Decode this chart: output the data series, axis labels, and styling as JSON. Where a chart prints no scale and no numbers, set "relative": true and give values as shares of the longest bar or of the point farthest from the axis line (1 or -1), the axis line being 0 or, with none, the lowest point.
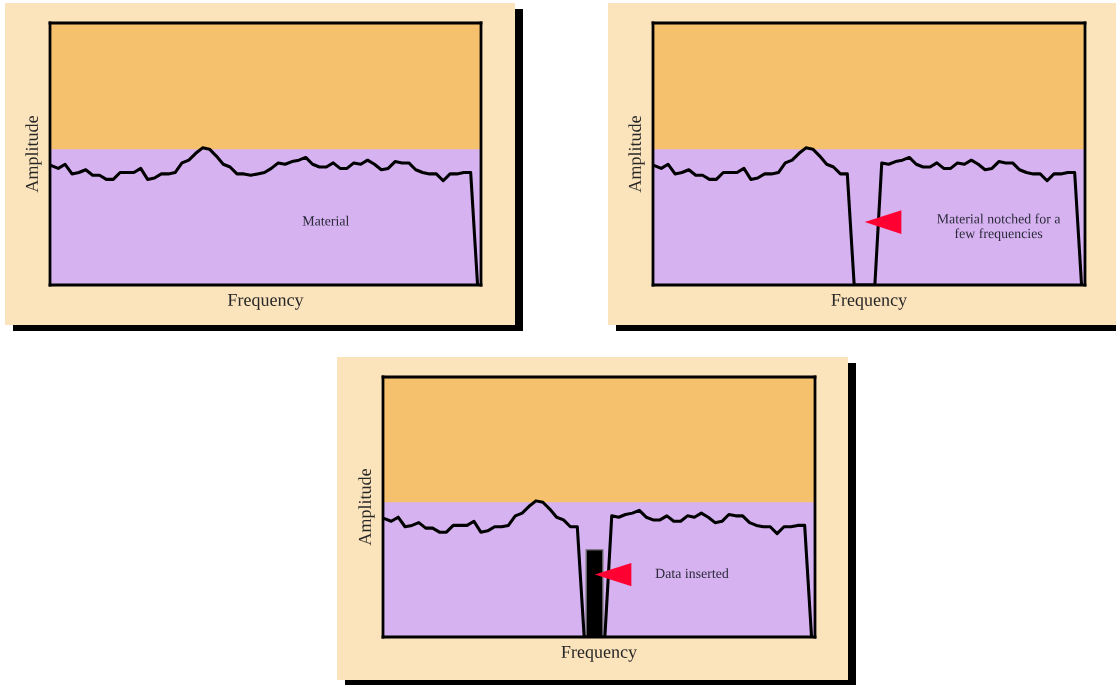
{
  "chart_data": [
    {
      "type": "line",
      "relative": true,
      "xlabel": "Frequency",
      "ylabel": "Amplitude",
      "tick_labels": false,
      "annotations": [
        "Material"
      ],
      "categories": [
        null,
        null,
        null,
        null,
        null,
        null,
        null,
        null,
        null,
        null,
        null,
        null,
        null,
        null,
        null,
        null,
        null,
        null,
        null,
        null,
        null,
        null,
        null,
        null,
        null,
        null,
        null,
        null,
        null,
        null,
        null,
        null,
        null,
        null,
        null,
        null,
        null,
        null,
        null,
        null,
        null,
        null,
        null,
        null,
        null,
        null,
        null,
        null,
        null,
        null,
        null,
        null,
        null,
        null,
        null,
        null,
        null,
        null,
        null,
        null,
        null,
        null,
        null
      ],
      "series": [
        {
          "color": "#000000",
          "values": [
            0.87,
            0.85,
            0.88,
            0.81,
            0.82,
            0.84,
            0.8,
            0.8,
            0.77,
            0.77,
            0.82,
            0.82,
            0.82,
            0.85,
            0.77,
            0.78,
            0.81,
            0.81,
            0.82,
            0.89,
            0.91,
            0.96,
            1.0,
            0.99,
            0.94,
            0.88,
            0.86,
            0.81,
            0.81,
            0.8,
            0.81,
            0.82,
            0.85,
            0.89,
            0.88,
            0.9,
            0.91,
            0.93,
            0.88,
            0.86,
            0.86,
            0.89,
            0.85,
            0.85,
            0.89,
            0.88,
            0.91,
            0.88,
            0.84,
            0.85,
            0.9,
            0.89,
            0.89,
            0.84,
            0.82,
            0.81,
            0.81,
            0.76,
            0.81,
            0.81,
            0.82,
            0.82,
            0
          ]
        }
      ]
    },
    {
      "type": "line",
      "relative": true,
      "xlabel": "Frequency",
      "ylabel": "Amplitude",
      "tick_labels": false,
      "annotations": [
        "Material notched for a\nfew frequencies"
      ],
      "categories": [
        null,
        null,
        null,
        null,
        null,
        null,
        null,
        null,
        null,
        null,
        null,
        null,
        null,
        null,
        null,
        null,
        null,
        null,
        null,
        null,
        null,
        null,
        null,
        null,
        null,
        null,
        null,
        null,
        null,
        null,
        null,
        null,
        null,
        null,
        null,
        null,
        null,
        null,
        null,
        null,
        null,
        null,
        null,
        null,
        null,
        null,
        null,
        null,
        null,
        null,
        null,
        null,
        null,
        null,
        null,
        null,
        null,
        null,
        null,
        null,
        null,
        null,
        null
      ],
      "series": [
        {
          "color": "#000000",
          "values": [
            0.87,
            0.85,
            0.88,
            0.81,
            0.82,
            0.84,
            0.8,
            0.8,
            0.77,
            0.77,
            0.82,
            0.82,
            0.82,
            0.85,
            0.77,
            0.78,
            0.81,
            0.81,
            0.82,
            0.89,
            0.91,
            0.96,
            1.0,
            0.99,
            0.94,
            0.88,
            0.86,
            0.81,
            0.81,
            0,
            0,
            0,
            0,
            0.89,
            0.88,
            0.9,
            0.91,
            0.93,
            0.88,
            0.86,
            0.86,
            0.89,
            0.85,
            0.85,
            0.89,
            0.88,
            0.91,
            0.88,
            0.84,
            0.85,
            0.9,
            0.89,
            0.89,
            0.84,
            0.82,
            0.81,
            0.81,
            0.76,
            0.81,
            0.81,
            0.82,
            0.82,
            0
          ]
        }
      ]
    },
    {
      "type": "line",
      "relative": true,
      "xlabel": "Frequency",
      "ylabel": "Amplitude",
      "tick_labels": false,
      "annotations": [
        "Data inserted"
      ],
      "categories": [
        null,
        null,
        null,
        null,
        null,
        null,
        null,
        null,
        null,
        null,
        null,
        null,
        null,
        null,
        null,
        null,
        null,
        null,
        null,
        null,
        null,
        null,
        null,
        null,
        null,
        null,
        null,
        null,
        null,
        null,
        null,
        null,
        null,
        null,
        null,
        null,
        null,
        null,
        null,
        null,
        null,
        null,
        null,
        null,
        null,
        null,
        null,
        null,
        null,
        null,
        null,
        null,
        null,
        null,
        null,
        null,
        null,
        null,
        null,
        null,
        null,
        null,
        null
      ],
      "series": [
        {
          "color": "#000000",
          "values": [
            0.87,
            0.85,
            0.88,
            0.81,
            0.82,
            0.84,
            0.8,
            0.8,
            0.77,
            0.77,
            0.82,
            0.82,
            0.82,
            0.85,
            0.77,
            0.78,
            0.81,
            0.81,
            0.82,
            0.89,
            0.91,
            0.96,
            1.0,
            0.99,
            0.94,
            0.88,
            0.86,
            0.81,
            0.81,
            0,
            0,
            0,
            0,
            0.89,
            0.88,
            0.9,
            0.91,
            0.93,
            0.88,
            0.86,
            0.86,
            0.89,
            0.85,
            0.85,
            0.89,
            0.88,
            0.91,
            0.88,
            0.84,
            0.85,
            0.9,
            0.89,
            0.89,
            0.84,
            0.82,
            0.81,
            0.81,
            0.76,
            0.81,
            0.81,
            0.82,
            0.82,
            0
          ]
        }
      ]
    }
  ]
}
